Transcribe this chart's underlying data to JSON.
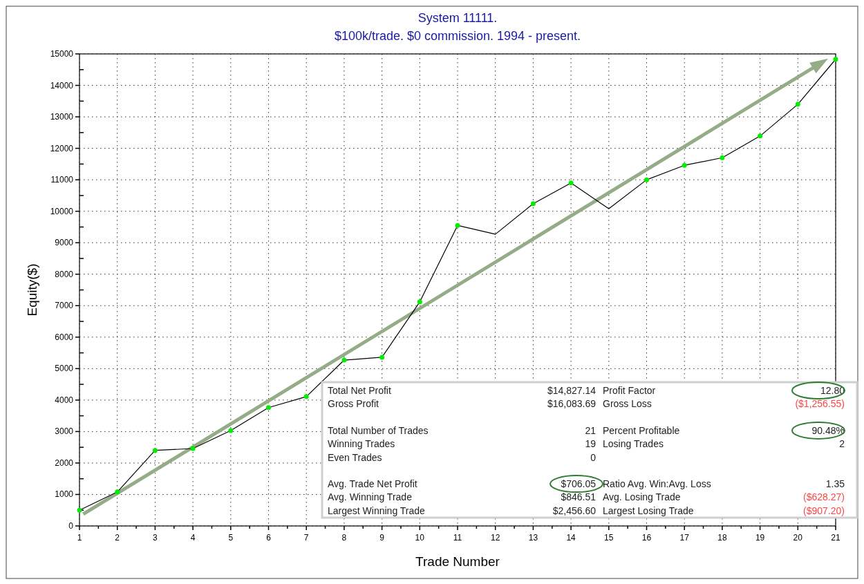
{
  "chart_data": {
    "type": "line",
    "title": "System 11111.",
    "subtitle": "$100k/trade. $0 commission. 1994 - present.",
    "xlabel": "Trade Number",
    "ylabel": "Equity($)",
    "x": [
      1,
      2,
      3,
      4,
      5,
      6,
      7,
      8,
      9,
      10,
      11,
      12,
      13,
      14,
      15,
      16,
      17,
      18,
      19,
      20,
      21
    ],
    "series": [
      {
        "color": "#000000",
        "values": [
          500,
          1080,
          2400,
          2460,
          3030,
          3760,
          4110,
          5270,
          5360,
          7120,
          9550,
          9270,
          10240,
          10900,
          10080,
          11000,
          11460,
          11700,
          12390,
          13400,
          14830
        ]
      },
      {
        "type": "scatter",
        "color": "#00ee00",
        "marker": "circle",
        "values": [
          500,
          1080,
          2400,
          2460,
          3030,
          3760,
          4110,
          5270,
          5360,
          7120,
          9550,
          null,
          10240,
          10900,
          null,
          11000,
          11460,
          11700,
          12390,
          13400,
          14830
        ]
      }
    ],
    "xlim": [
      1,
      21
    ],
    "xticks": [
      1,
      2,
      3,
      4,
      5,
      6,
      7,
      8,
      9,
      10,
      11,
      12,
      13,
      14,
      15,
      16,
      17,
      18,
      19,
      20,
      21
    ],
    "ylim": [
      0,
      15000
    ],
    "yticks": [
      0,
      1000,
      2000,
      3000,
      4000,
      5000,
      6000,
      7000,
      8000,
      9000,
      10000,
      11000,
      12000,
      13000,
      14000,
      15000
    ],
    "grid": true,
    "annotations": [
      "Total Net Profit",
      "$14,827.14",
      "Gross Profit",
      "$16,083.69",
      "Total Number of Trades",
      "21",
      "Winning Trades",
      "19",
      "Even Trades",
      "0",
      "Avg. Trade Net Profit",
      "$706.05",
      "Avg. Winning Trade",
      "$846.51",
      "Largest Winning Trade",
      "$2,456.60",
      "Profit Factor",
      "12.80",
      "Gross Loss",
      "($1,256.55)",
      "Percent Profitable",
      "90.48%",
      "Losing Trades",
      "2",
      "Ratio Avg. Win:Avg. Loss",
      "1.35",
      "Avg. Losing Trade",
      "($628.27)",
      "Largest Losing Trade",
      "($907.20)"
    ]
  }
}
